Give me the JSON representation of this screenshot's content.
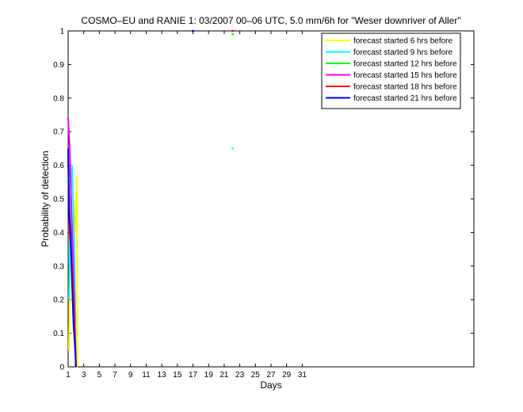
{
  "chart_data": {
    "type": "line",
    "title": "COSMO–EU and RANIE 1: 03/2007 00–06 UTC, 5.0 mm/6h for \"Weser downriver of Aller\"",
    "xlabel": "Days",
    "ylabel": "Probability of detection",
    "xlim": [
      1,
      53
    ],
    "ylim": [
      0,
      1
    ],
    "x_ticks": [
      1,
      3,
      5,
      7,
      9,
      11,
      13,
      15,
      17,
      19,
      21,
      23,
      25,
      27,
      29,
      31
    ],
    "y_ticks": [
      0,
      0.1,
      0.2,
      0.3,
      0.4,
      0.5,
      0.6,
      0.7,
      0.8,
      0.9,
      1
    ],
    "y_tick_labels": [
      "0",
      "0.1",
      "0.2",
      "0.3",
      "0.4",
      "0.5",
      "0.6",
      "0.7",
      "0.8",
      "0.9",
      "1"
    ],
    "grid": false,
    "legend_position": "top-right",
    "series": [
      {
        "name": "forecast started 6 hrs before",
        "color": "#ffff00",
        "points": [
          [
            1.1,
            0.05
          ],
          [
            1.3,
            0.42
          ],
          [
            1.5,
            0.3
          ],
          [
            1.7,
            0.5
          ],
          [
            1.9,
            0.4
          ],
          [
            2.1,
            0.57
          ],
          [
            2.2,
            0.0
          ]
        ]
      },
      {
        "name": "forecast started 9 hrs before",
        "color": "#00ffff",
        "points": [
          [
            1.1,
            0.2
          ],
          [
            1.3,
            0.5
          ],
          [
            1.5,
            0.6
          ],
          [
            1.7,
            0.45
          ],
          [
            1.9,
            0.2
          ],
          [
            2.0,
            0.0
          ]
        ],
        "markers": [
          [
            22.1,
            0.65
          ],
          [
            22.1,
            1.0
          ]
        ]
      },
      {
        "name": "forecast started 12 hrs before",
        "color": "#00ff00",
        "points": [
          [
            1.0,
            0.55
          ],
          [
            1.2,
            0.6
          ],
          [
            1.4,
            0.5
          ],
          [
            1.6,
            0.3
          ],
          [
            1.8,
            0.15
          ],
          [
            2.0,
            0.0
          ]
        ],
        "markers": [
          [
            22.1,
            0.99
          ]
        ]
      },
      {
        "name": "forecast started 15 hrs before",
        "color": "#ff00ff",
        "points": [
          [
            1.0,
            0.74
          ],
          [
            1.2,
            0.65
          ],
          [
            1.4,
            0.48
          ],
          [
            1.6,
            0.35
          ],
          [
            1.8,
            0.18
          ],
          [
            2.0,
            0.0
          ]
        ]
      },
      {
        "name": "forecast started 18 hrs before",
        "color": "#ff0000",
        "points": [
          [
            1.0,
            0.62
          ],
          [
            1.2,
            0.4
          ],
          [
            1.5,
            0.3
          ],
          [
            1.7,
            0.2
          ],
          [
            2.0,
            0.0
          ]
        ],
        "markers": [
          [
            22.1,
            1.0
          ]
        ]
      },
      {
        "name": "forecast started 21 hrs before",
        "color": "#0000ff",
        "points": [
          [
            1.0,
            0.65
          ],
          [
            1.1,
            0.47
          ],
          [
            1.3,
            0.4
          ],
          [
            1.5,
            0.25
          ],
          [
            1.7,
            0.12
          ],
          [
            1.9,
            0.05
          ],
          [
            2.0,
            0.0
          ]
        ],
        "markers": [
          [
            17.0,
            1.0
          ]
        ]
      }
    ]
  }
}
